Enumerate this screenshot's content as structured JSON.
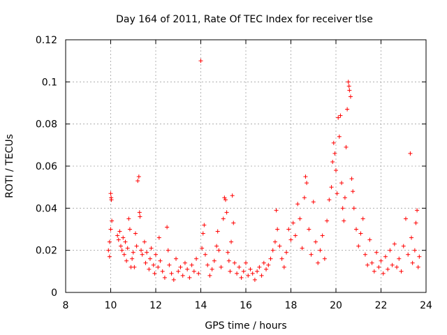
{
  "chart_data": {
    "type": "scatter",
    "title": "Day 164 of 2011, Rate Of TEC Index for receiver tlse",
    "xlabel": "GPS time / hours",
    "ylabel": "ROTI / TECUs",
    "xlim": [
      8,
      24
    ],
    "ylim": [
      0,
      0.12
    ],
    "grid": true,
    "marker": "+",
    "marker_color": "#ff0000",
    "x_ticks": [
      "8",
      "10",
      "12",
      "14",
      "16",
      "18",
      "20",
      "22",
      "24"
    ],
    "y_ticks": [
      "0",
      "0.02",
      "0.04",
      "0.06",
      "0.08",
      "0.1",
      "0.12"
    ],
    "series": [
      {
        "name": "ROTI",
        "points": [
          [
            9.9,
            0.02
          ],
          [
            9.95,
            0.024
          ],
          [
            10.0,
            0.047
          ],
          [
            10.02,
            0.045
          ],
          [
            10.03,
            0.044
          ],
          [
            10.0,
            0.03
          ],
          [
            9.95,
            0.017
          ],
          [
            10.05,
            0.034
          ],
          [
            10.3,
            0.027
          ],
          [
            10.35,
            0.025
          ],
          [
            10.4,
            0.029
          ],
          [
            10.45,
            0.022
          ],
          [
            10.5,
            0.02
          ],
          [
            10.55,
            0.026
          ],
          [
            10.6,
            0.018
          ],
          [
            10.65,
            0.024
          ],
          [
            10.7,
            0.015
          ],
          [
            10.75,
            0.021
          ],
          [
            10.8,
            0.035
          ],
          [
            10.85,
            0.03
          ],
          [
            10.9,
            0.012
          ],
          [
            10.95,
            0.016
          ],
          [
            11.0,
            0.019
          ],
          [
            11.05,
            0.012
          ],
          [
            11.1,
            0.028
          ],
          [
            11.15,
            0.022
          ],
          [
            11.2,
            0.053
          ],
          [
            11.25,
            0.055
          ],
          [
            11.28,
            0.038
          ],
          [
            11.3,
            0.036
          ],
          [
            11.35,
            0.02
          ],
          [
            11.4,
            0.018
          ],
          [
            11.5,
            0.024
          ],
          [
            11.55,
            0.014
          ],
          [
            11.6,
            0.019
          ],
          [
            11.7,
            0.011
          ],
          [
            11.75,
            0.016
          ],
          [
            11.8,
            0.021
          ],
          [
            11.9,
            0.013
          ],
          [
            11.95,
            0.009
          ],
          [
            12.0,
            0.018
          ],
          [
            12.1,
            0.012
          ],
          [
            12.15,
            0.026
          ],
          [
            12.2,
            0.015
          ],
          [
            12.3,
            0.01
          ],
          [
            12.4,
            0.007
          ],
          [
            12.5,
            0.031
          ],
          [
            12.55,
            0.02
          ],
          [
            12.6,
            0.013
          ],
          [
            12.7,
            0.009
          ],
          [
            12.8,
            0.006
          ],
          [
            12.9,
            0.016
          ],
          [
            13.0,
            0.01
          ],
          [
            13.1,
            0.012
          ],
          [
            13.2,
            0.008
          ],
          [
            13.3,
            0.014
          ],
          [
            13.4,
            0.011
          ],
          [
            13.5,
            0.007
          ],
          [
            13.6,
            0.013
          ],
          [
            13.7,
            0.01
          ],
          [
            13.8,
            0.016
          ],
          [
            13.9,
            0.009
          ],
          [
            14.0,
            0.11
          ],
          [
            14.05,
            0.021
          ],
          [
            14.1,
            0.028
          ],
          [
            14.15,
            0.032
          ],
          [
            14.2,
            0.018
          ],
          [
            14.3,
            0.013
          ],
          [
            14.4,
            0.008
          ],
          [
            14.5,
            0.011
          ],
          [
            14.6,
            0.015
          ],
          [
            14.7,
            0.022
          ],
          [
            14.75,
            0.029
          ],
          [
            14.8,
            0.02
          ],
          [
            14.9,
            0.012
          ],
          [
            15.0,
            0.035
          ],
          [
            15.05,
            0.045
          ],
          [
            15.1,
            0.044
          ],
          [
            15.15,
            0.038
          ],
          [
            15.2,
            0.019
          ],
          [
            15.25,
            0.015
          ],
          [
            15.3,
            0.01
          ],
          [
            15.35,
            0.024
          ],
          [
            15.4,
            0.046
          ],
          [
            15.45,
            0.033
          ],
          [
            15.5,
            0.014
          ],
          [
            15.6,
            0.009
          ],
          [
            15.7,
            0.012
          ],
          [
            15.8,
            0.007
          ],
          [
            15.9,
            0.01
          ],
          [
            16.0,
            0.014
          ],
          [
            16.1,
            0.008
          ],
          [
            16.2,
            0.011
          ],
          [
            16.3,
            0.009
          ],
          [
            16.4,
            0.006
          ],
          [
            16.5,
            0.01
          ],
          [
            16.6,
            0.012
          ],
          [
            16.7,
            0.008
          ],
          [
            16.8,
            0.014
          ],
          [
            16.9,
            0.011
          ],
          [
            17.0,
            0.013
          ],
          [
            17.1,
            0.016
          ],
          [
            17.2,
            0.02
          ],
          [
            17.3,
            0.024
          ],
          [
            17.35,
            0.039
          ],
          [
            17.4,
            0.03
          ],
          [
            17.5,
            0.022
          ],
          [
            17.6,
            0.016
          ],
          [
            17.7,
            0.012
          ],
          [
            17.8,
            0.019
          ],
          [
            17.9,
            0.03
          ],
          [
            18.0,
            0.025
          ],
          [
            18.1,
            0.033
          ],
          [
            18.2,
            0.027
          ],
          [
            18.3,
            0.042
          ],
          [
            18.4,
            0.035
          ],
          [
            18.5,
            0.021
          ],
          [
            18.6,
            0.045
          ],
          [
            18.65,
            0.055
          ],
          [
            18.7,
            0.052
          ],
          [
            18.8,
            0.03
          ],
          [
            18.9,
            0.018
          ],
          [
            19.0,
            0.043
          ],
          [
            19.1,
            0.024
          ],
          [
            19.2,
            0.014
          ],
          [
            19.3,
            0.02
          ],
          [
            19.4,
            0.027
          ],
          [
            19.5,
            0.016
          ],
          [
            19.6,
            0.034
          ],
          [
            19.7,
            0.044
          ],
          [
            19.8,
            0.05
          ],
          [
            19.85,
            0.062
          ],
          [
            19.9,
            0.071
          ],
          [
            19.95,
            0.066
          ],
          [
            20.0,
            0.058
          ],
          [
            20.05,
            0.047
          ],
          [
            20.1,
            0.083
          ],
          [
            20.15,
            0.074
          ],
          [
            20.2,
            0.084
          ],
          [
            20.25,
            0.052
          ],
          [
            20.3,
            0.04
          ],
          [
            20.35,
            0.034
          ],
          [
            20.4,
            0.045
          ],
          [
            20.45,
            0.069
          ],
          [
            20.5,
            0.087
          ],
          [
            20.55,
            0.1
          ],
          [
            20.58,
            0.098
          ],
          [
            20.6,
            0.096
          ],
          [
            20.65,
            0.093
          ],
          [
            20.7,
            0.054
          ],
          [
            20.75,
            0.048
          ],
          [
            20.8,
            0.04
          ],
          [
            20.9,
            0.03
          ],
          [
            21.0,
            0.022
          ],
          [
            21.1,
            0.028
          ],
          [
            21.2,
            0.035
          ],
          [
            21.3,
            0.018
          ],
          [
            21.4,
            0.013
          ],
          [
            21.5,
            0.025
          ],
          [
            21.6,
            0.014
          ],
          [
            21.7,
            0.01
          ],
          [
            21.8,
            0.019
          ],
          [
            21.9,
            0.012
          ],
          [
            22.0,
            0.015
          ],
          [
            22.1,
            0.009
          ],
          [
            22.2,
            0.017
          ],
          [
            22.3,
            0.011
          ],
          [
            22.4,
            0.02
          ],
          [
            22.5,
            0.013
          ],
          [
            22.6,
            0.023
          ],
          [
            22.7,
            0.012
          ],
          [
            22.8,
            0.016
          ],
          [
            22.9,
            0.01
          ],
          [
            23.0,
            0.022
          ],
          [
            23.1,
            0.035
          ],
          [
            23.2,
            0.018
          ],
          [
            23.3,
            0.066
          ],
          [
            23.35,
            0.026
          ],
          [
            23.4,
            0.014
          ],
          [
            23.5,
            0.02
          ],
          [
            23.55,
            0.033
          ],
          [
            23.6,
            0.039
          ],
          [
            23.65,
            0.012
          ],
          [
            23.7,
            0.017
          ]
        ]
      }
    ]
  }
}
